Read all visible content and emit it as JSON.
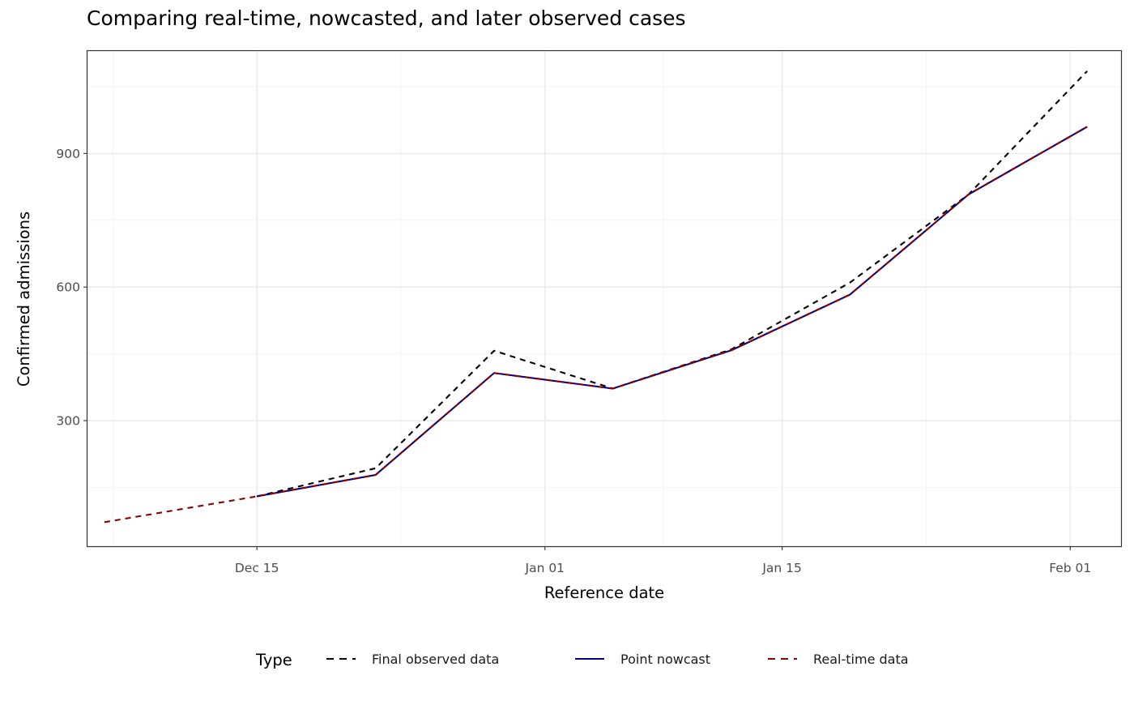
{
  "chart_data": {
    "type": "line",
    "title": "Comparing real-time, nowcasted, and later observed cases",
    "xlabel": "Reference date",
    "ylabel": "Confirmed admissions",
    "x_ticks": [
      {
        "date": "2020-12-15",
        "label": "Dec 15"
      },
      {
        "date": "2021-01-01",
        "label": "Jan 01"
      },
      {
        "date": "2021-01-15",
        "label": "Jan 15"
      },
      {
        "date": "2021-02-01",
        "label": "Feb 01"
      }
    ],
    "y_ticks": [
      300,
      600,
      900
    ],
    "xlim": [
      "2020-12-05",
      "2021-02-04"
    ],
    "ylim": [
      18,
      1130
    ],
    "grid": true,
    "legend_title": "Type",
    "legend_position": "bottom",
    "series": [
      {
        "name": "Final observed data",
        "color": "#000000",
        "dash": "dashed",
        "points": [
          {
            "x": "2020-12-15",
            "y": 130
          },
          {
            "x": "2020-12-22",
            "y": 193
          },
          {
            "x": "2020-12-29",
            "y": 457
          },
          {
            "x": "2021-01-05",
            "y": 372
          },
          {
            "x": "2021-01-12",
            "y": 460
          },
          {
            "x": "2021-01-19",
            "y": 610
          },
          {
            "x": "2021-01-26",
            "y": 808
          },
          {
            "x": "2021-02-02",
            "y": 1085
          }
        ]
      },
      {
        "name": "Point nowcast",
        "color": "#00008B",
        "dash": "solid",
        "points": [
          {
            "x": "2020-12-15",
            "y": 130
          },
          {
            "x": "2020-12-22",
            "y": 178
          },
          {
            "x": "2020-12-29",
            "y": 407
          },
          {
            "x": "2021-01-05",
            "y": 372
          },
          {
            "x": "2021-01-12",
            "y": 458
          },
          {
            "x": "2021-01-19",
            "y": 583
          },
          {
            "x": "2021-01-26",
            "y": 808
          },
          {
            "x": "2021-02-02",
            "y": 960
          }
        ]
      },
      {
        "name": "Real-time data",
        "color": "#8B0000",
        "dash": "dashed",
        "points": [
          {
            "x": "2020-12-06",
            "y": 72
          },
          {
            "x": "2020-12-15",
            "y": 130
          },
          {
            "x": "2020-12-22",
            "y": 178
          },
          {
            "x": "2020-12-29",
            "y": 407
          },
          {
            "x": "2021-01-05",
            "y": 372
          },
          {
            "x": "2021-01-12",
            "y": 458
          },
          {
            "x": "2021-01-19",
            "y": 583
          },
          {
            "x": "2021-01-26",
            "y": 808
          },
          {
            "x": "2021-02-02",
            "y": 960
          }
        ]
      }
    ]
  }
}
